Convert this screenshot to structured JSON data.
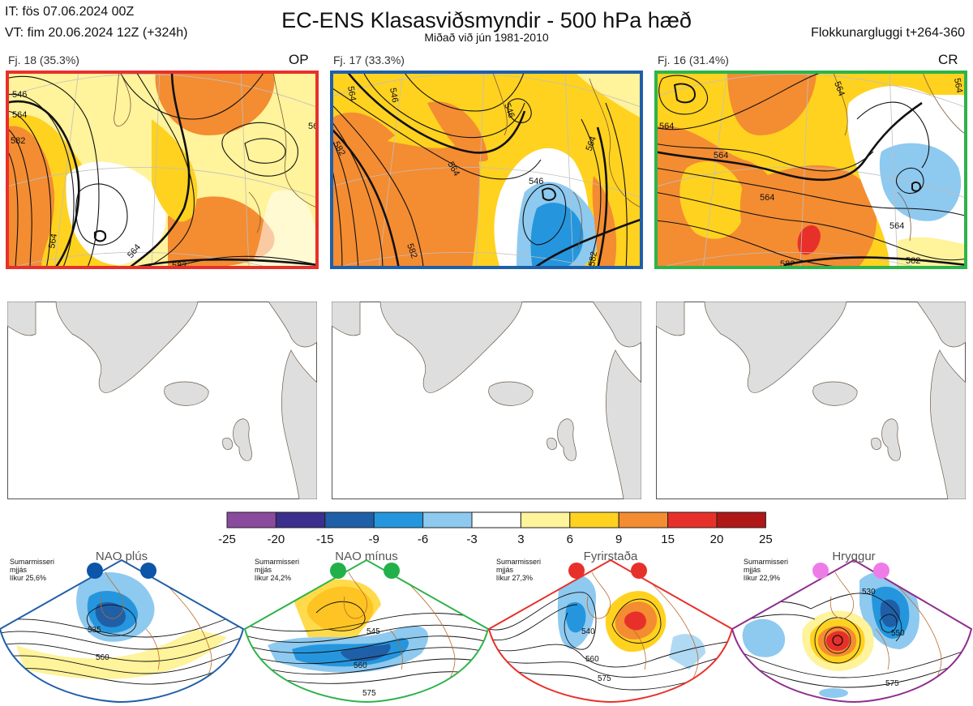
{
  "header": {
    "it_line": "IT: fös 07.06.2024 00Z",
    "vt_line": "VT: fim 20.06.2024 12Z  (+324h)",
    "title": "EC-ENS Klasasviðsmyndir - 500 hPa hæð",
    "subtitle": "Miðað við jún 1981-2010",
    "window": "Flokkunargluggi t+264-360"
  },
  "panels": [
    {
      "label": "Fj. 18 (35.3%)",
      "tag": "OP",
      "border": "#e8302a"
    },
    {
      "label": "Fj. 17 (33.3%)",
      "tag": "",
      "border": "#1f5fa8"
    },
    {
      "label": "Fj. 16 (31.4%)",
      "tag": "CR",
      "border": "#2eb34a"
    }
  ],
  "contour_labels": {
    "p1": [
      "546",
      "564",
      "582",
      "564",
      "564",
      "582",
      "56"
    ],
    "p2": [
      "564",
      "546",
      "546",
      "582",
      "564",
      "546",
      "582",
      "564",
      "582"
    ],
    "p3": [
      "564",
      "564",
      "564",
      "564",
      "564",
      "582",
      "582",
      "564"
    ]
  },
  "colorbar": {
    "ticks": [
      "-25",
      "-20",
      "-15",
      "-9",
      "-6",
      "-3",
      "3",
      "6",
      "9",
      "15",
      "20",
      "25"
    ],
    "colors": [
      "#8a4a9e",
      "#3b2e8c",
      "#1f5fa8",
      "#2596dd",
      "#8ec9ef",
      "#ffffff",
      "#fff39b",
      "#ffd21f",
      "#f48c32",
      "#e8302a",
      "#b01717"
    ]
  },
  "regimes": [
    {
      "name": "NAO plús",
      "season": "Sumarmisseri",
      "note": "mjjás",
      "prob": "líkur 25,6%",
      "color": "#1f5fa8",
      "dot": "#0c55a8",
      "contours": [
        "535",
        "560"
      ]
    },
    {
      "name": "NAO mínus",
      "season": "Sumarmisseri",
      "note": "mjjás",
      "prob": "líkur 24,2%",
      "color": "#2eb34a",
      "dot": "#22b04a",
      "contours": [
        "545",
        "560",
        "575"
      ]
    },
    {
      "name": "Fyrirstaða",
      "season": "Sumarmisseri",
      "note": "mjjás",
      "prob": "líkur 27,3%",
      "color": "#e8302a",
      "dot": "#e8302a",
      "contours": [
        "540",
        "560",
        "575"
      ]
    },
    {
      "name": "Hryggur",
      "season": "Sumarmisseri",
      "note": "mjjás",
      "prob": "líkur 22,9%",
      "color": "#8e2d8e",
      "dot": "#ee7ce8",
      "contours": [
        "530",
        "550",
        "575"
      ]
    }
  ],
  "chart_data": {
    "type": "heatmap",
    "title": "EC-ENS Klasasviðsmyndir - 500 hPa hæð",
    "subtitle": "Miðað við jún 1981-2010",
    "colorbar_levels": [
      -25,
      -20,
      -15,
      -9,
      -6,
      -3,
      3,
      6,
      9,
      15,
      20,
      25
    ],
    "clusters": [
      {
        "label": "Fj. 18 (35.3%)",
        "tag": "OP",
        "percent": 35.3
      },
      {
        "label": "Fj. 17 (33.3%)",
        "tag": "",
        "percent": 33.3
      },
      {
        "label": "Fj. 16 (31.4%)",
        "tag": "CR",
        "percent": 31.4
      }
    ],
    "regimes": [
      {
        "name": "NAO plús",
        "prob_percent": 25.6
      },
      {
        "name": "NAO mínus",
        "prob_percent": 24.2
      },
      {
        "name": "Fyrirstaða",
        "prob_percent": 27.3
      },
      {
        "name": "Hryggur",
        "prob_percent": 22.9
      }
    ]
  }
}
